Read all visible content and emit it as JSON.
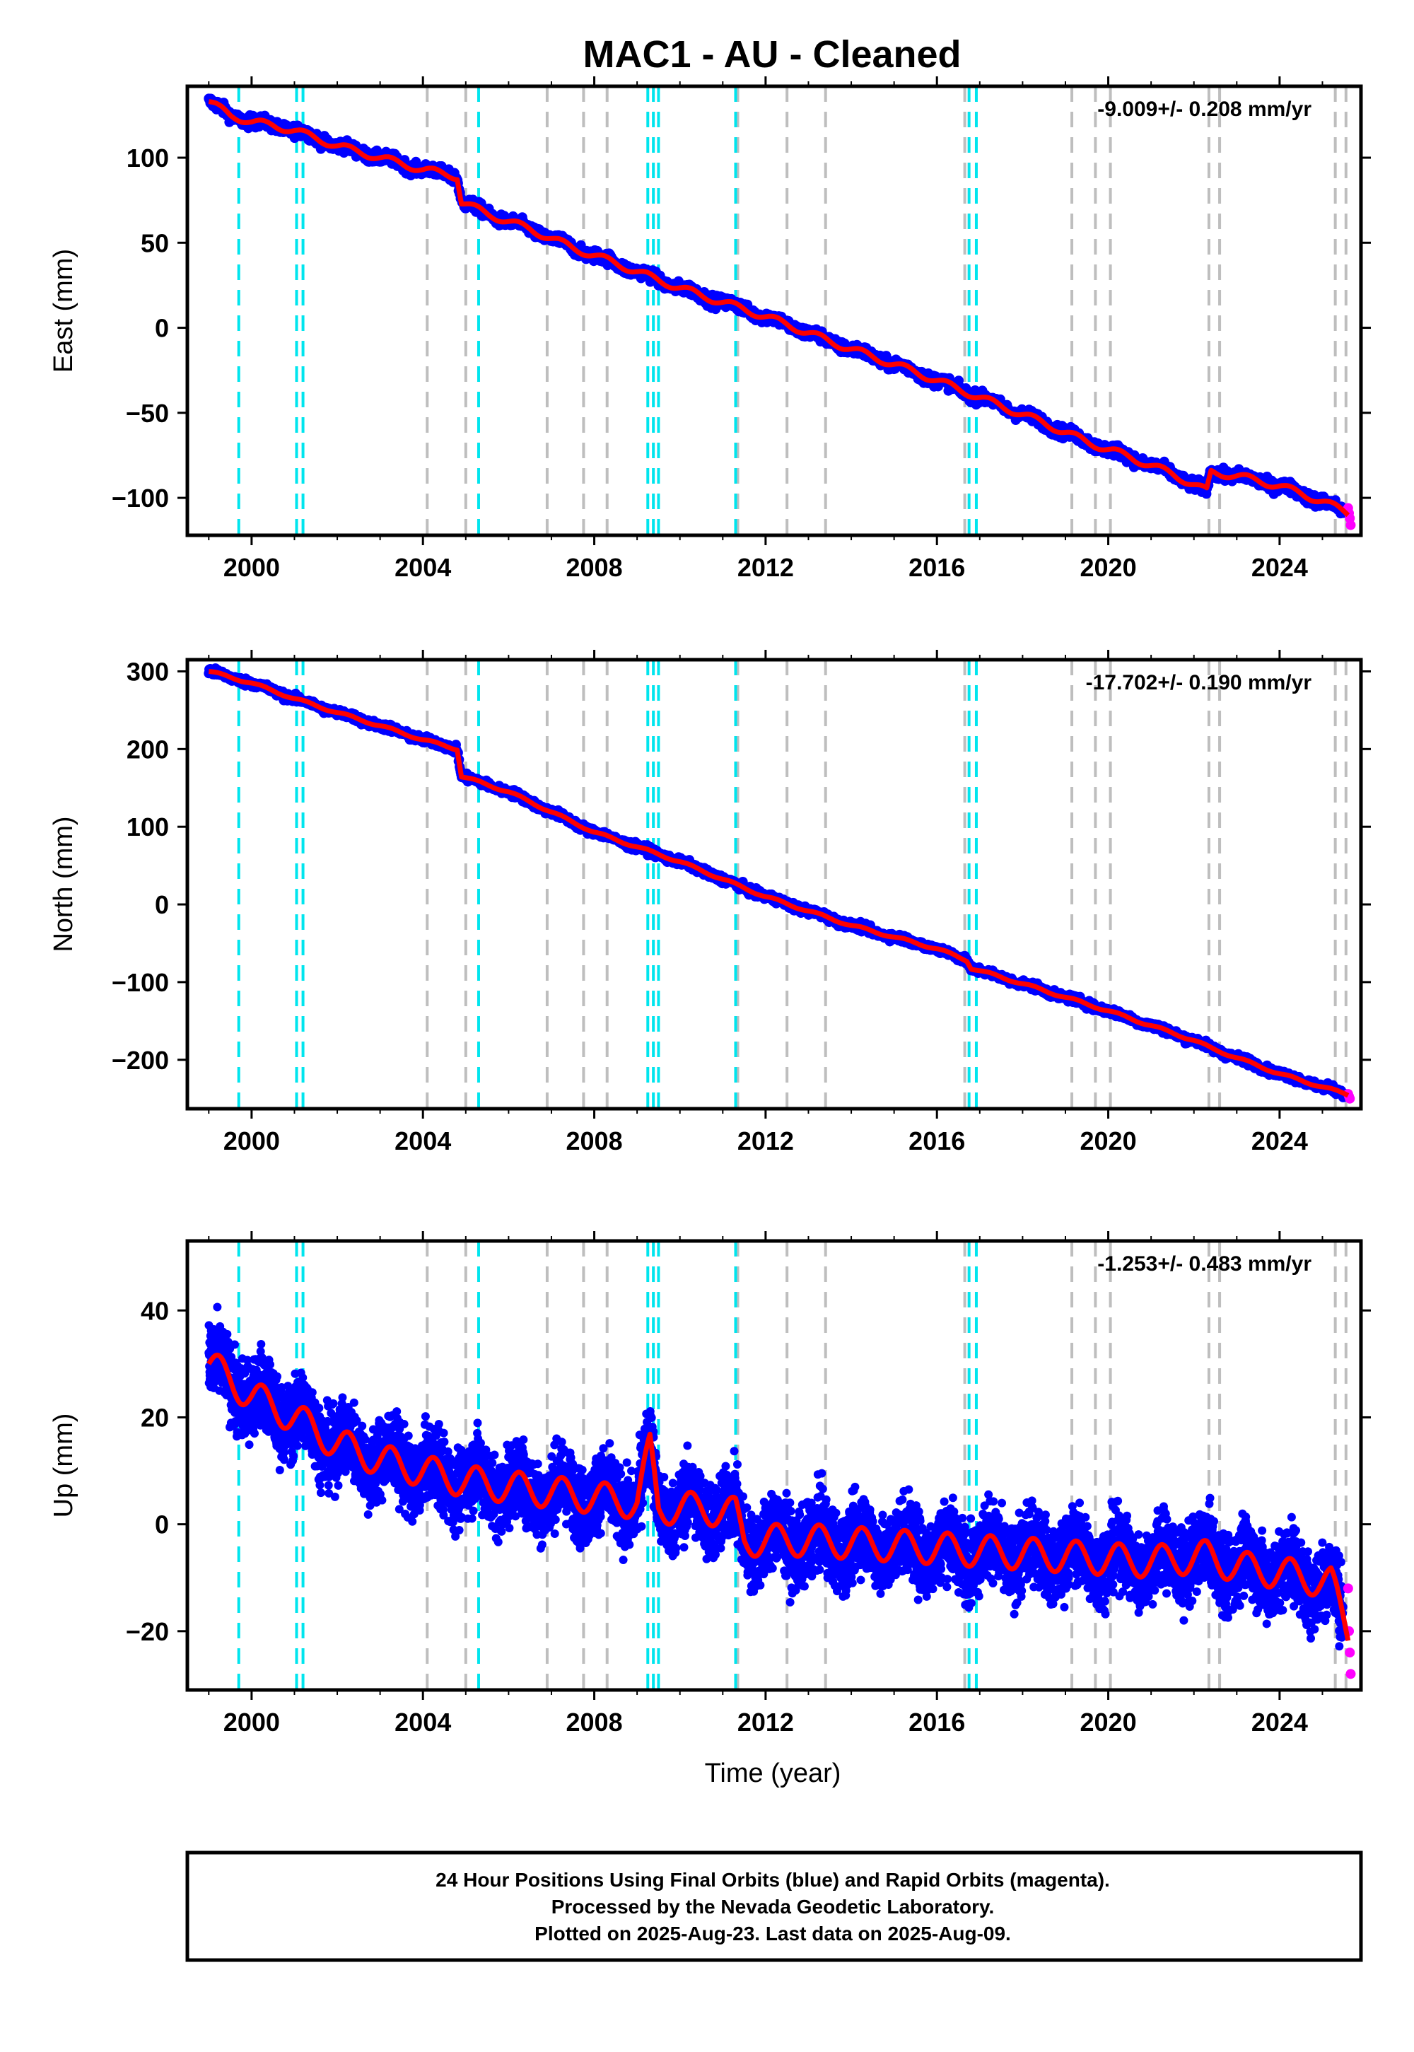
{
  "title": "MAC1  - AU - Cleaned",
  "xlabel": "Time (year)",
  "footer": [
    "24 Hour Positions Using Final Orbits (blue) and Rapid Orbits (magenta).",
    "Processed by the Nevada Geodetic Laboratory.",
    "Plotted on 2025-Aug-23. Last data on 2025-Aug-09."
  ],
  "colors": {
    "final_points": "#0000ff",
    "rapid_points": "#ff00ff",
    "model": "#ff0000",
    "equipment_change_lines": "#00e5ee",
    "other_event_lines": "#bebebe"
  },
  "x_ticks": [
    "2000",
    "2004",
    "2008",
    "2012",
    "2016",
    "2020",
    "2024"
  ],
  "events": {
    "cyan": [
      1999.7,
      2001.05,
      2001.2,
      2005.3,
      2009.25,
      2009.38,
      2009.5,
      2011.3,
      2016.75,
      2016.92
    ],
    "gray": [
      2004.1,
      2005.0,
      2006.9,
      2007.75,
      2008.3,
      2011.35,
      2012.5,
      2013.4,
      2016.65,
      2019.15,
      2019.7,
      2020.05,
      2022.35,
      2022.6,
      2025.3,
      2025.55
    ]
  },
  "chart_data": [
    {
      "type": "scatter",
      "ylabel": "East (mm)",
      "rate_label": "-9.009+/- 0.208 mm/yr",
      "xlim": [
        1998.5,
        2025.9
      ],
      "ylim": [
        -122,
        142
      ],
      "y_ticks": [
        100,
        50,
        0,
        -50,
        -100
      ],
      "series": [
        {
          "name": "Final Orbits (blue)",
          "kind": "points",
          "x": [
            1999.0,
            1999.5,
            2000.0,
            2000.5,
            2001.0,
            2002.0,
            2003.0,
            2004.0,
            2004.8,
            2004.9,
            2005.5,
            2006.5,
            2007.5,
            2008.5,
            2009.5,
            2010.5,
            2011.5,
            2012.5,
            2013.5,
            2014.5,
            2015.5,
            2016.5,
            2017.5,
            2018.5,
            2019.5,
            2020.5,
            2021.5,
            2022.3,
            2022.4,
            2023.0,
            2024.0,
            2025.0,
            2025.5
          ],
          "y": [
            133,
            125,
            121,
            119,
            116,
            107,
            100,
            93,
            89,
            74,
            67,
            58,
            47,
            38,
            28,
            19,
            11,
            2,
            -8,
            -17,
            -26,
            -36,
            -46,
            -56,
            -67,
            -76,
            -86,
            -96,
            -85,
            -87,
            -93,
            -102,
            -108
          ]
        },
        {
          "name": "Rapid Orbits (magenta)",
          "kind": "points",
          "x": [
            2025.6,
            2025.62,
            2025.64,
            2025.66
          ],
          "y": [
            -106,
            -109,
            -112,
            -116
          ]
        },
        {
          "name": "Model",
          "kind": "line",
          "x": [
            1999.0,
            1999.5,
            2000.0,
            2000.5,
            2001.0,
            2002.0,
            2003.0,
            2004.0,
            2004.8,
            2004.9,
            2005.5,
            2006.5,
            2007.5,
            2008.5,
            2009.5,
            2010.5,
            2011.5,
            2012.5,
            2013.5,
            2014.5,
            2015.5,
            2016.5,
            2017.5,
            2018.5,
            2019.5,
            2020.5,
            2021.5,
            2022.3,
            2022.4,
            2023.0,
            2024.0,
            2025.0,
            2025.6
          ],
          "y": [
            133,
            125,
            121,
            119,
            116,
            107,
            100,
            93,
            89,
            74,
            67,
            58,
            47,
            38,
            28,
            19,
            11,
            2,
            -8,
            -17,
            -26,
            -36,
            -46,
            -56,
            -67,
            -76,
            -86,
            -96,
            -85,
            -87,
            -93,
            -102,
            -109
          ]
        }
      ]
    },
    {
      "type": "scatter",
      "ylabel": "North (mm)",
      "rate_label": "-17.702+/- 0.190 mm/yr",
      "xlim": [
        1998.5,
        2025.9
      ],
      "ylim": [
        -263,
        315
      ],
      "y_ticks": [
        300,
        200,
        100,
        0,
        -100,
        -200
      ],
      "series": [
        {
          "name": "Final Orbits (blue)",
          "kind": "points",
          "x": [
            1999.0,
            2000.0,
            2001.0,
            2002.0,
            2003.0,
            2004.0,
            2004.8,
            2004.9,
            2006.0,
            2008.0,
            2010.0,
            2012.0,
            2014.0,
            2016.0,
            2016.7,
            2016.8,
            2018.0,
            2020.0,
            2022.0,
            2022.4,
            2024.0,
            2025.5
          ],
          "y": [
            300,
            285,
            265,
            247,
            230,
            212,
            200,
            165,
            145,
            93,
            55,
            10,
            -27,
            -57,
            -72,
            -82,
            -102,
            -137,
            -175,
            -185,
            -218,
            -243
          ]
        },
        {
          "name": "Rapid Orbits (magenta)",
          "kind": "points",
          "x": [
            2025.6,
            2025.62,
            2025.64
          ],
          "y": [
            -244,
            -247,
            -250
          ]
        },
        {
          "name": "Model",
          "kind": "line",
          "x": [
            1999.0,
            2000.0,
            2001.0,
            2002.0,
            2003.0,
            2004.0,
            2004.8,
            2004.9,
            2006.0,
            2008.0,
            2010.0,
            2012.0,
            2014.0,
            2016.0,
            2016.7,
            2016.8,
            2018.0,
            2020.0,
            2022.0,
            2022.4,
            2024.0,
            2025.6
          ],
          "y": [
            300,
            285,
            265,
            247,
            230,
            212,
            200,
            165,
            145,
            93,
            55,
            10,
            -27,
            -57,
            -72,
            -82,
            -102,
            -137,
            -175,
            -185,
            -218,
            -245
          ]
        }
      ]
    },
    {
      "type": "scatter",
      "ylabel": "Up (mm)",
      "rate_label": "-1.253+/- 0.483 mm/yr",
      "xlim": [
        1998.5,
        2025.9
      ],
      "ylim": [
        -31,
        53
      ],
      "y_ticks": [
        40,
        20,
        0,
        -20
      ],
      "series": [
        {
          "name": "Final Orbits (blue)",
          "kind": "points",
          "x": [
            1999.0,
            2000.0,
            2001.0,
            2002.0,
            2003.0,
            2004.0,
            2005.0,
            2006.0,
            2007.0,
            2008.0,
            2009.0,
            2009.3,
            2009.5,
            2010.5,
            2011.3,
            2011.5,
            2013.0,
            2015.0,
            2017.0,
            2019.0,
            2021.0,
            2022.3,
            2023.0,
            2024.0,
            2025.2,
            2025.5
          ],
          "y": [
            30,
            24,
            20,
            15,
            12,
            10,
            8,
            7,
            6,
            5,
            4,
            14,
            3,
            3,
            2,
            -3,
            -3,
            -4,
            -5,
            -6,
            -7,
            -6,
            -8,
            -9,
            -11,
            -18
          ],
          "spread_mm": 5
        },
        {
          "name": "Rapid Orbits (magenta)",
          "kind": "points",
          "x": [
            2025.6,
            2025.62,
            2025.64,
            2025.66
          ],
          "y": [
            -12,
            -20,
            -24,
            -28
          ]
        },
        {
          "name": "Model",
          "kind": "line",
          "x": [
            1999.0,
            2000.0,
            2001.0,
            2002.0,
            2003.0,
            2004.0,
            2005.0,
            2006.0,
            2007.0,
            2008.0,
            2009.0,
            2009.3,
            2009.5,
            2010.5,
            2011.3,
            2011.5,
            2013.0,
            2015.0,
            2017.0,
            2019.0,
            2021.0,
            2022.3,
            2023.0,
            2024.0,
            2025.2,
            2025.6
          ],
          "y": [
            30,
            24,
            20,
            15,
            12,
            10,
            8,
            7,
            6,
            5,
            4,
            14,
            3,
            3,
            2,
            -3,
            -3,
            -4,
            -5,
            -6,
            -7,
            -6,
            -8,
            -9,
            -11,
            -20
          ],
          "seasonal_amplitude_mm": 3
        }
      ]
    }
  ]
}
